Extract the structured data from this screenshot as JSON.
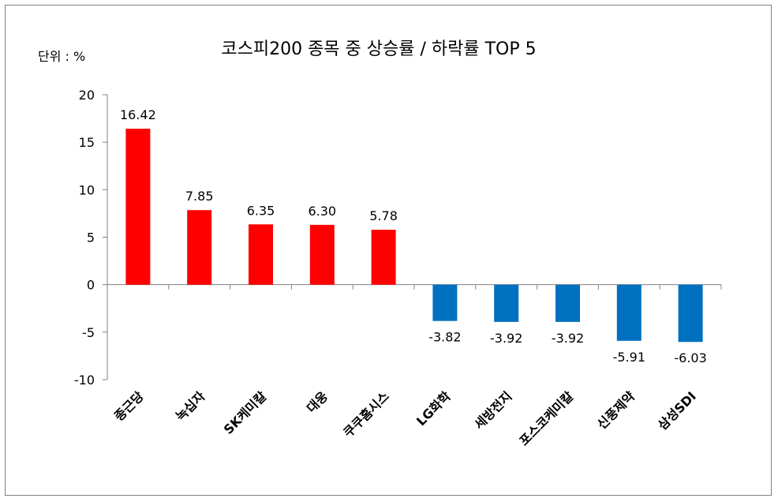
{
  "chart_data": {
    "type": "bar",
    "title": "코스피200 종목 중  상승률 / 하락률 TOP 5",
    "unit_label": "단위 : %",
    "categories": [
      "종근당",
      "녹십자",
      "SK케미칼",
      "대웅",
      "쿠쿠홈시스",
      "LG화학",
      "세방전지",
      "포스코케미칼",
      "신풍제약",
      "삼성SDI"
    ],
    "values": [
      16.42,
      7.85,
      6.35,
      6.3,
      5.78,
      -3.82,
      -3.92,
      -3.92,
      -5.91,
      -6.03
    ],
    "data_labels": [
      "16.42",
      "7.85",
      "6.35",
      "6.30",
      "5.78",
      "-3.82",
      "-3.92",
      "-3.92",
      "-5.91",
      "-6.03"
    ],
    "yticks": [
      20,
      15,
      10,
      5,
      0,
      -5,
      -10
    ],
    "ylim": [
      -10,
      20
    ],
    "grid": false,
    "legend": "none",
    "colors": {
      "positive": "#ff0000",
      "negative": "#0070c0"
    }
  }
}
